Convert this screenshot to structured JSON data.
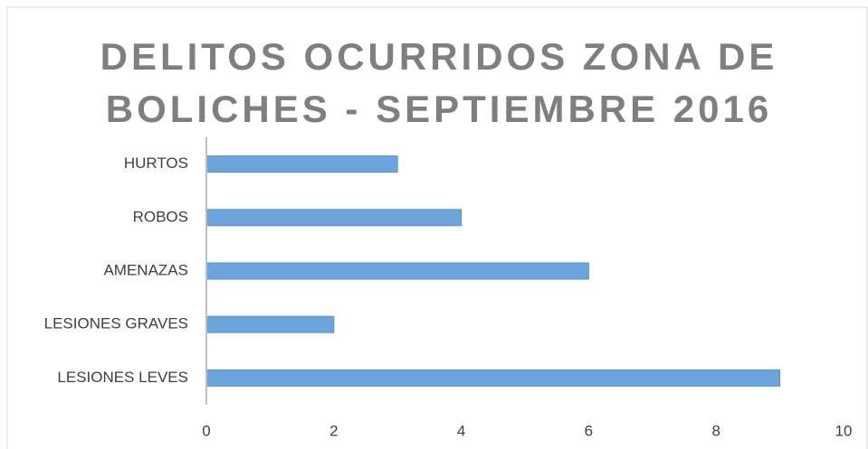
{
  "chart_data": {
    "type": "hbar",
    "title": "DELITOS OCURRIDOS ZONA DE BOLICHES - SEPTIEMBRE 2016",
    "categories": [
      "HURTOS",
      "ROBOS",
      "AMENAZAS",
      "LESIONES GRAVES",
      "LESIONES LEVES"
    ],
    "values": [
      3,
      4,
      6,
      2,
      9
    ],
    "color": "#6aa6dd",
    "xlim": [
      0,
      10
    ],
    "xticks": [
      0,
      2,
      4,
      6,
      8,
      10
    ],
    "grid": false
  }
}
